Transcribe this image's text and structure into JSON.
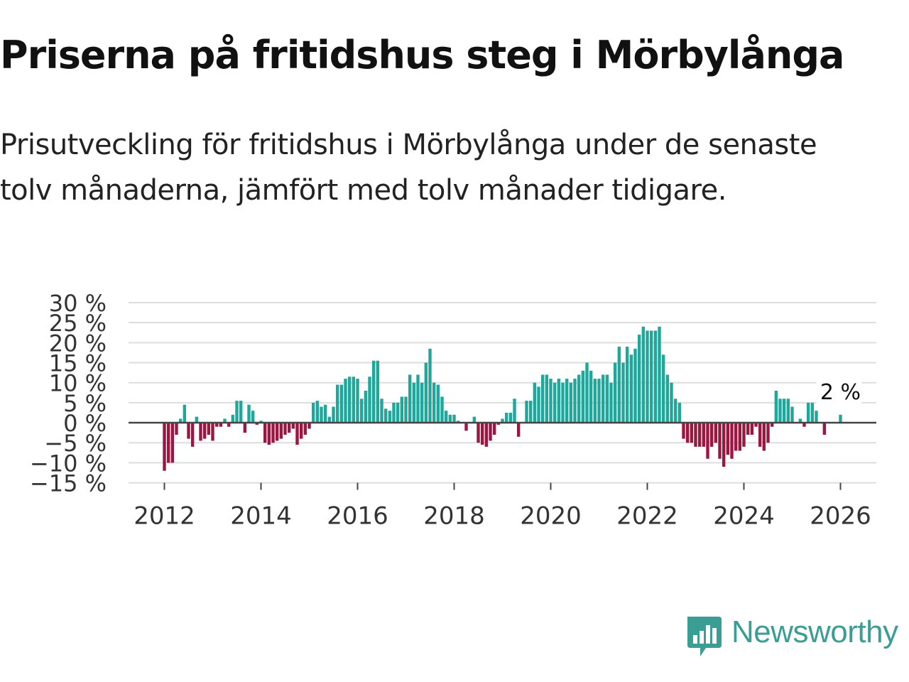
{
  "header": {
    "title": "Priserna på fritidshus steg i Mörbylånga",
    "subtitle": "Prisutveckling för fritidshus i Mörbylånga under de senaste tolv månaderna, jämfört med tolv månader tidigare."
  },
  "brand": {
    "name": "Newsworthy",
    "color": "#3a9e94"
  },
  "colors": {
    "positive": "#1ea89c",
    "negative": "#9b1741",
    "grid": "#dddddd",
    "zero": "#444444",
    "text": "#333333"
  },
  "chart_data": {
    "type": "bar",
    "title": "Priserna på fritidshus steg i Mörbylånga",
    "xlabel": "",
    "ylabel": "",
    "x_start": "2012-01",
    "x_ticks": [
      "2012",
      "2014",
      "2016",
      "2018",
      "2020",
      "2022",
      "2024",
      "2026"
    ],
    "y_ticks": [
      "30 %",
      "25 %",
      "20 %",
      "15 %",
      "10 %",
      "5 %",
      "0 %",
      "−5 %",
      "−10 %",
      "−15 %"
    ],
    "ylim": [
      -15,
      30
    ],
    "annotation": {
      "label": "2 %",
      "month": "2026-01",
      "value": 2
    },
    "values": [
      -12,
      -10,
      -10,
      -3,
      1,
      4.5,
      -4,
      -6,
      1.5,
      -4.5,
      -4,
      -3,
      -4.5,
      -1,
      -1,
      1,
      -1,
      2,
      5.5,
      5.5,
      -2.5,
      4.5,
      3,
      -0.5,
      0.5,
      -5,
      -5.5,
      -5,
      -4.5,
      -4,
      -3,
      -2.5,
      -1.5,
      -5.5,
      -4,
      -3,
      -1.5,
      5,
      5.5,
      4,
      4.5,
      1.5,
      4,
      9.5,
      9.5,
      11,
      11.5,
      11.5,
      11,
      6,
      8,
      11.5,
      15.5,
      15.5,
      6,
      3.5,
      3,
      5,
      5,
      6.5,
      6.5,
      12,
      10,
      12,
      10,
      15,
      18.5,
      10,
      9.5,
      6.5,
      3,
      2,
      2,
      0.5,
      0,
      -2,
      0,
      1.5,
      -5,
      -5.5,
      -6,
      -4.5,
      -3,
      -0.5,
      1,
      2.5,
      2.5,
      6,
      -3.5,
      0,
      5.5,
      5.5,
      10,
      9,
      12,
      12,
      11,
      10,
      11,
      10,
      11,
      10,
      11,
      12,
      13,
      15,
      13,
      11,
      11,
      12,
      12,
      10,
      15,
      19,
      15,
      19,
      17,
      18.5,
      22,
      24,
      23,
      23,
      23,
      24,
      17,
      12,
      10,
      6,
      5,
      -4,
      -5,
      -5,
      -6,
      -6,
      -6,
      -9,
      -6,
      -5,
      -9,
      -11,
      -8,
      -9,
      -7,
      -7,
      -6,
      -3,
      -3,
      -1,
      -6,
      -7,
      -5,
      -1,
      8,
      6,
      6,
      6,
      4,
      0,
      1,
      -1,
      5,
      5,
      3,
      0,
      -3,
      0,
      0,
      0,
      2
    ]
  }
}
